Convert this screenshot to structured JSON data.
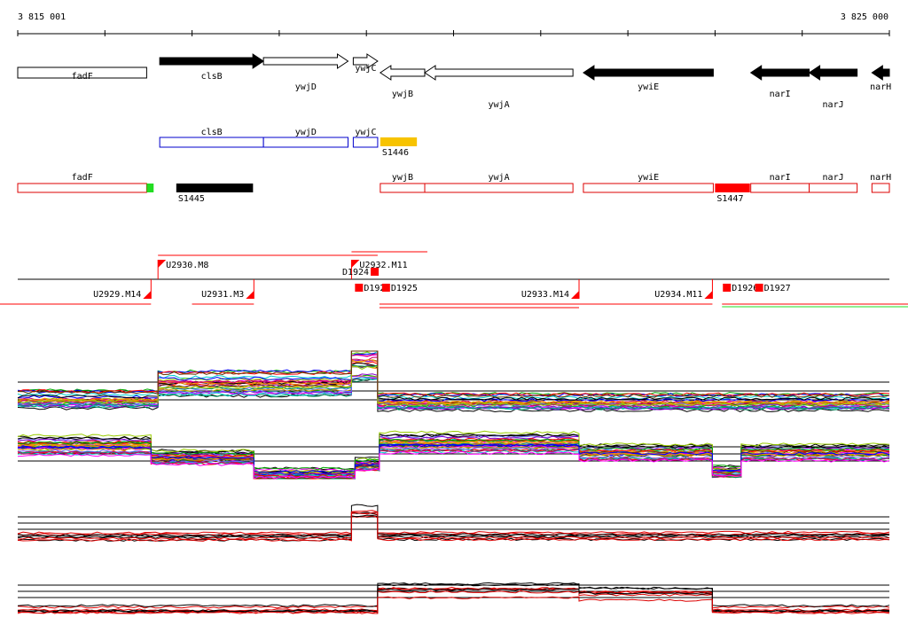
{
  "ruler": {
    "start_label": "3 815 001",
    "end_label": "3 825 000",
    "start_pos": 3815001,
    "end_pos": 3825000
  },
  "colors": {
    "gene_fill_dark": "#000000",
    "gene_outline": "#000000",
    "operon_blue": "#0000cc",
    "operon_red": "#dd0000",
    "sigma_yellow": "#f7c300",
    "sigma_black": "#000000",
    "sigma_red": "#ff0000",
    "marker_green": "#22dd22"
  },
  "genes": [
    {
      "name": "fadF",
      "start": 3815001,
      "end": 3816480,
      "strand": "none",
      "filled": false,
      "label_row": "below"
    },
    {
      "name": "clsB",
      "start": 3816630,
      "end": 3817820,
      "strand": "+",
      "filled": true,
      "label_row": "below"
    },
    {
      "name": "ywjD",
      "start": 3817820,
      "end": 3818790,
      "strand": "+",
      "filled": false,
      "label_row": "below2"
    },
    {
      "name": "ywjC",
      "start": 3818850,
      "end": 3819130,
      "strand": "+",
      "filled": false,
      "label_row": "right"
    },
    {
      "name": "ywjB",
      "start": 3819160,
      "end": 3819670,
      "strand": "-",
      "filled": false,
      "label_row": "below3"
    },
    {
      "name": "ywjA",
      "start": 3819670,
      "end": 3821370,
      "strand": "-",
      "filled": false,
      "label_row": "below4"
    },
    {
      "name": "ywiE",
      "start": 3821490,
      "end": 3822980,
      "strand": "-",
      "filled": true,
      "label_row": "below2"
    },
    {
      "name": "narI",
      "start": 3823410,
      "end": 3824080,
      "strand": "-",
      "filled": true,
      "label_row": "below3"
    },
    {
      "name": "narJ",
      "start": 3824080,
      "end": 3824630,
      "strand": "-",
      "filled": true,
      "label_row": "below4"
    },
    {
      "name": "narH",
      "start": 3824800,
      "end": 3825000,
      "strand": "-",
      "filled": true,
      "label_row": "below2"
    }
  ],
  "operons_blue": [
    {
      "name": "clsB",
      "start": 3816630,
      "end": 3817820
    },
    {
      "name": "ywjD",
      "start": 3817820,
      "end": 3818790
    },
    {
      "name": "ywjC",
      "start": 3818850,
      "end": 3819130
    }
  ],
  "operons_red": [
    {
      "name": "fadF",
      "start": 3815001,
      "end": 3816480
    },
    {
      "name": "ywjB",
      "start": 3819160,
      "end": 3819670
    },
    {
      "name": "ywjA",
      "start": 3819670,
      "end": 3821370
    },
    {
      "name": "ywiE",
      "start": 3821490,
      "end": 3822980
    },
    {
      "name": "narI",
      "start": 3823410,
      "end": 3824080
    },
    {
      "name": "narJ",
      "start": 3824080,
      "end": 3824630
    },
    {
      "name": "narH",
      "start": 3824800,
      "end": 3825000
    }
  ],
  "sigma_sites": [
    {
      "name": "S1446",
      "start": 3819160,
      "end": 3819580,
      "color": "#f7c300",
      "row": "blue"
    },
    {
      "name": "S1445",
      "start": 3816820,
      "end": 3817700,
      "color": "#000000",
      "row": "red"
    },
    {
      "name": "S1447",
      "start": 3823000,
      "end": 3823400,
      "color": "#ff0000",
      "row": "red"
    }
  ],
  "green_marker": {
    "start": 3816480,
    "end": 3816560
  },
  "transcripts_upper": [
    {
      "name": "U2930.M8",
      "pos": 3816610
    },
    {
      "name": "U2932.M11",
      "pos": 3818830
    }
  ],
  "transcripts_lower": [
    {
      "name": "U2929.M14",
      "pos": 3816530
    },
    {
      "name": "U2931.M3",
      "pos": 3817710
    },
    {
      "name": "U2933.M14",
      "pos": 3821440
    },
    {
      "name": "U2934.M11",
      "pos": 3822970
    }
  ],
  "downshifts": [
    {
      "name": "D1924",
      "pos": 3819050,
      "row": "upper"
    },
    {
      "name": "D192",
      "pos": 3818870,
      "row": "lower"
    },
    {
      "name": "D1925",
      "pos": 3819180,
      "row": "lower"
    },
    {
      "name": "D1926",
      "pos": 3823090,
      "row": "lower"
    },
    {
      "name": "D1927",
      "pos": 3823460,
      "row": "lower"
    }
  ],
  "expression_panels": [
    {
      "name": "panel-1",
      "strand": "+",
      "segments": [
        {
          "from": 3815001,
          "to": 3816610,
          "level": 0.25
        },
        {
          "from": 3816610,
          "to": 3818830,
          "level": 0.55
        },
        {
          "from": 3818830,
          "to": 3819130,
          "level": 0.95
        },
        {
          "from": 3819130,
          "to": 3825000,
          "level": 0.2
        }
      ]
    },
    {
      "name": "panel-2",
      "strand": "-",
      "segments": [
        {
          "from": 3815001,
          "to": 3816530,
          "level": 0.7
        },
        {
          "from": 3816530,
          "to": 3817710,
          "level": 0.45
        },
        {
          "from": 3817710,
          "to": 3818870,
          "level": 0.1
        },
        {
          "from": 3818870,
          "to": 3819150,
          "level": 0.3
        },
        {
          "from": 3819150,
          "to": 3821440,
          "level": 0.75
        },
        {
          "from": 3821440,
          "to": 3822970,
          "level": 0.55
        },
        {
          "from": 3822970,
          "to": 3823300,
          "level": 0.15
        },
        {
          "from": 3823300,
          "to": 3825000,
          "level": 0.55
        }
      ]
    },
    {
      "name": "panel-3",
      "strand": "+",
      "segments": [
        {
          "from": 3815001,
          "to": 3818830,
          "level": 0.2
        },
        {
          "from": 3818830,
          "to": 3819130,
          "level": 0.95
        },
        {
          "from": 3819130,
          "to": 3825000,
          "level": 0.22
        }
      ]
    },
    {
      "name": "panel-4",
      "strand": "-",
      "segments": [
        {
          "from": 3815001,
          "to": 3819130,
          "level": 0.15
        },
        {
          "from": 3819130,
          "to": 3821440,
          "level": 0.75
        },
        {
          "from": 3821440,
          "to": 3822970,
          "level": 0.65
        },
        {
          "from": 3822970,
          "to": 3825000,
          "level": 0.15
        }
      ]
    }
  ]
}
